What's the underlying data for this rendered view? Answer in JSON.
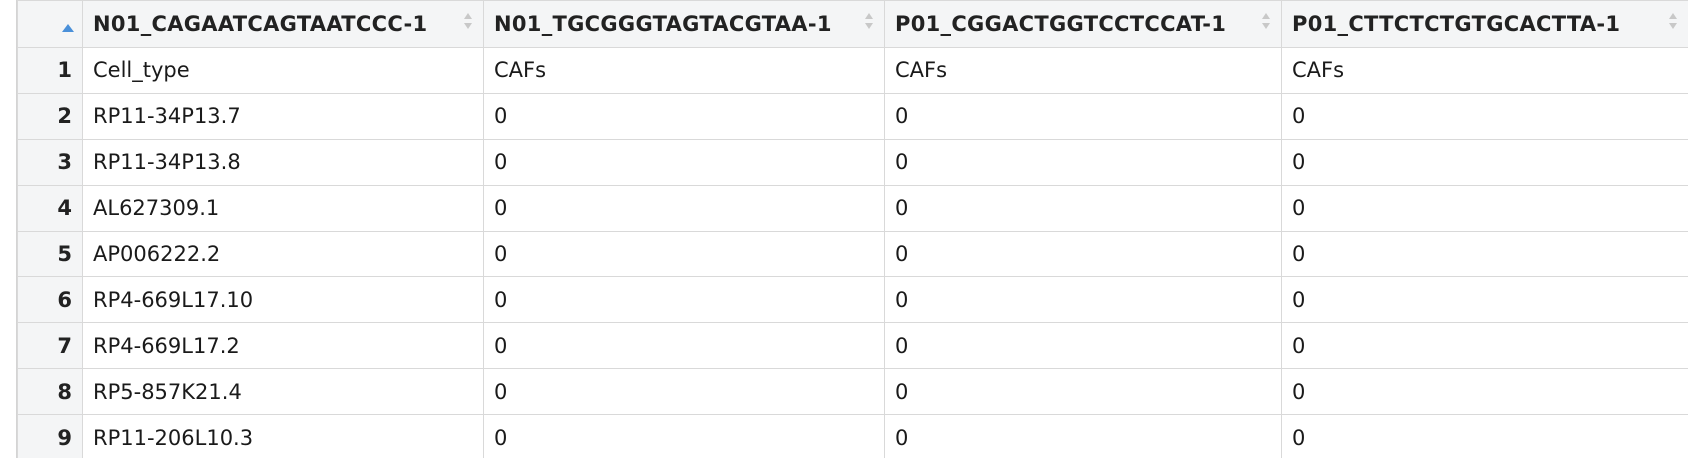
{
  "table": {
    "columns": [
      "",
      "N01_CAGAATCAGTAATCCC-1",
      "N01_TGCGGGTAGTACGTAA-1",
      "P01_CGGACTGGTCCTCCAT-1",
      "P01_CTTCTCTGTGCACTTA-1"
    ],
    "rows": [
      [
        "1",
        "Cell_type",
        "CAFs",
        "CAFs",
        "CAFs"
      ],
      [
        "2",
        "RP11-34P13.7",
        "0",
        "0",
        "0"
      ],
      [
        "3",
        "RP11-34P13.8",
        "0",
        "0",
        "0"
      ],
      [
        "4",
        "AL627309.1",
        "0",
        "0",
        "0"
      ],
      [
        "5",
        "AP006222.2",
        "0",
        "0",
        "0"
      ],
      [
        "6",
        "RP4-669L17.10",
        "0",
        "0",
        "0"
      ],
      [
        "7",
        "RP4-669L17.2",
        "0",
        "0",
        "0"
      ],
      [
        "8",
        "RP5-857K21.4",
        "0",
        "0",
        "0"
      ],
      [
        "9",
        "RP11-206L10.3",
        "0",
        "0",
        "0"
      ]
    ]
  },
  "colors": {
    "header_bg": "#f4f5f6",
    "grid_line": "#d9d9d9",
    "sort_active": "#4a90d9",
    "sort_inactive": "#c8c8c8"
  },
  "icons": {
    "index_sort": "sort-ascending-icon",
    "column_sort": "sort-updown-icon"
  }
}
